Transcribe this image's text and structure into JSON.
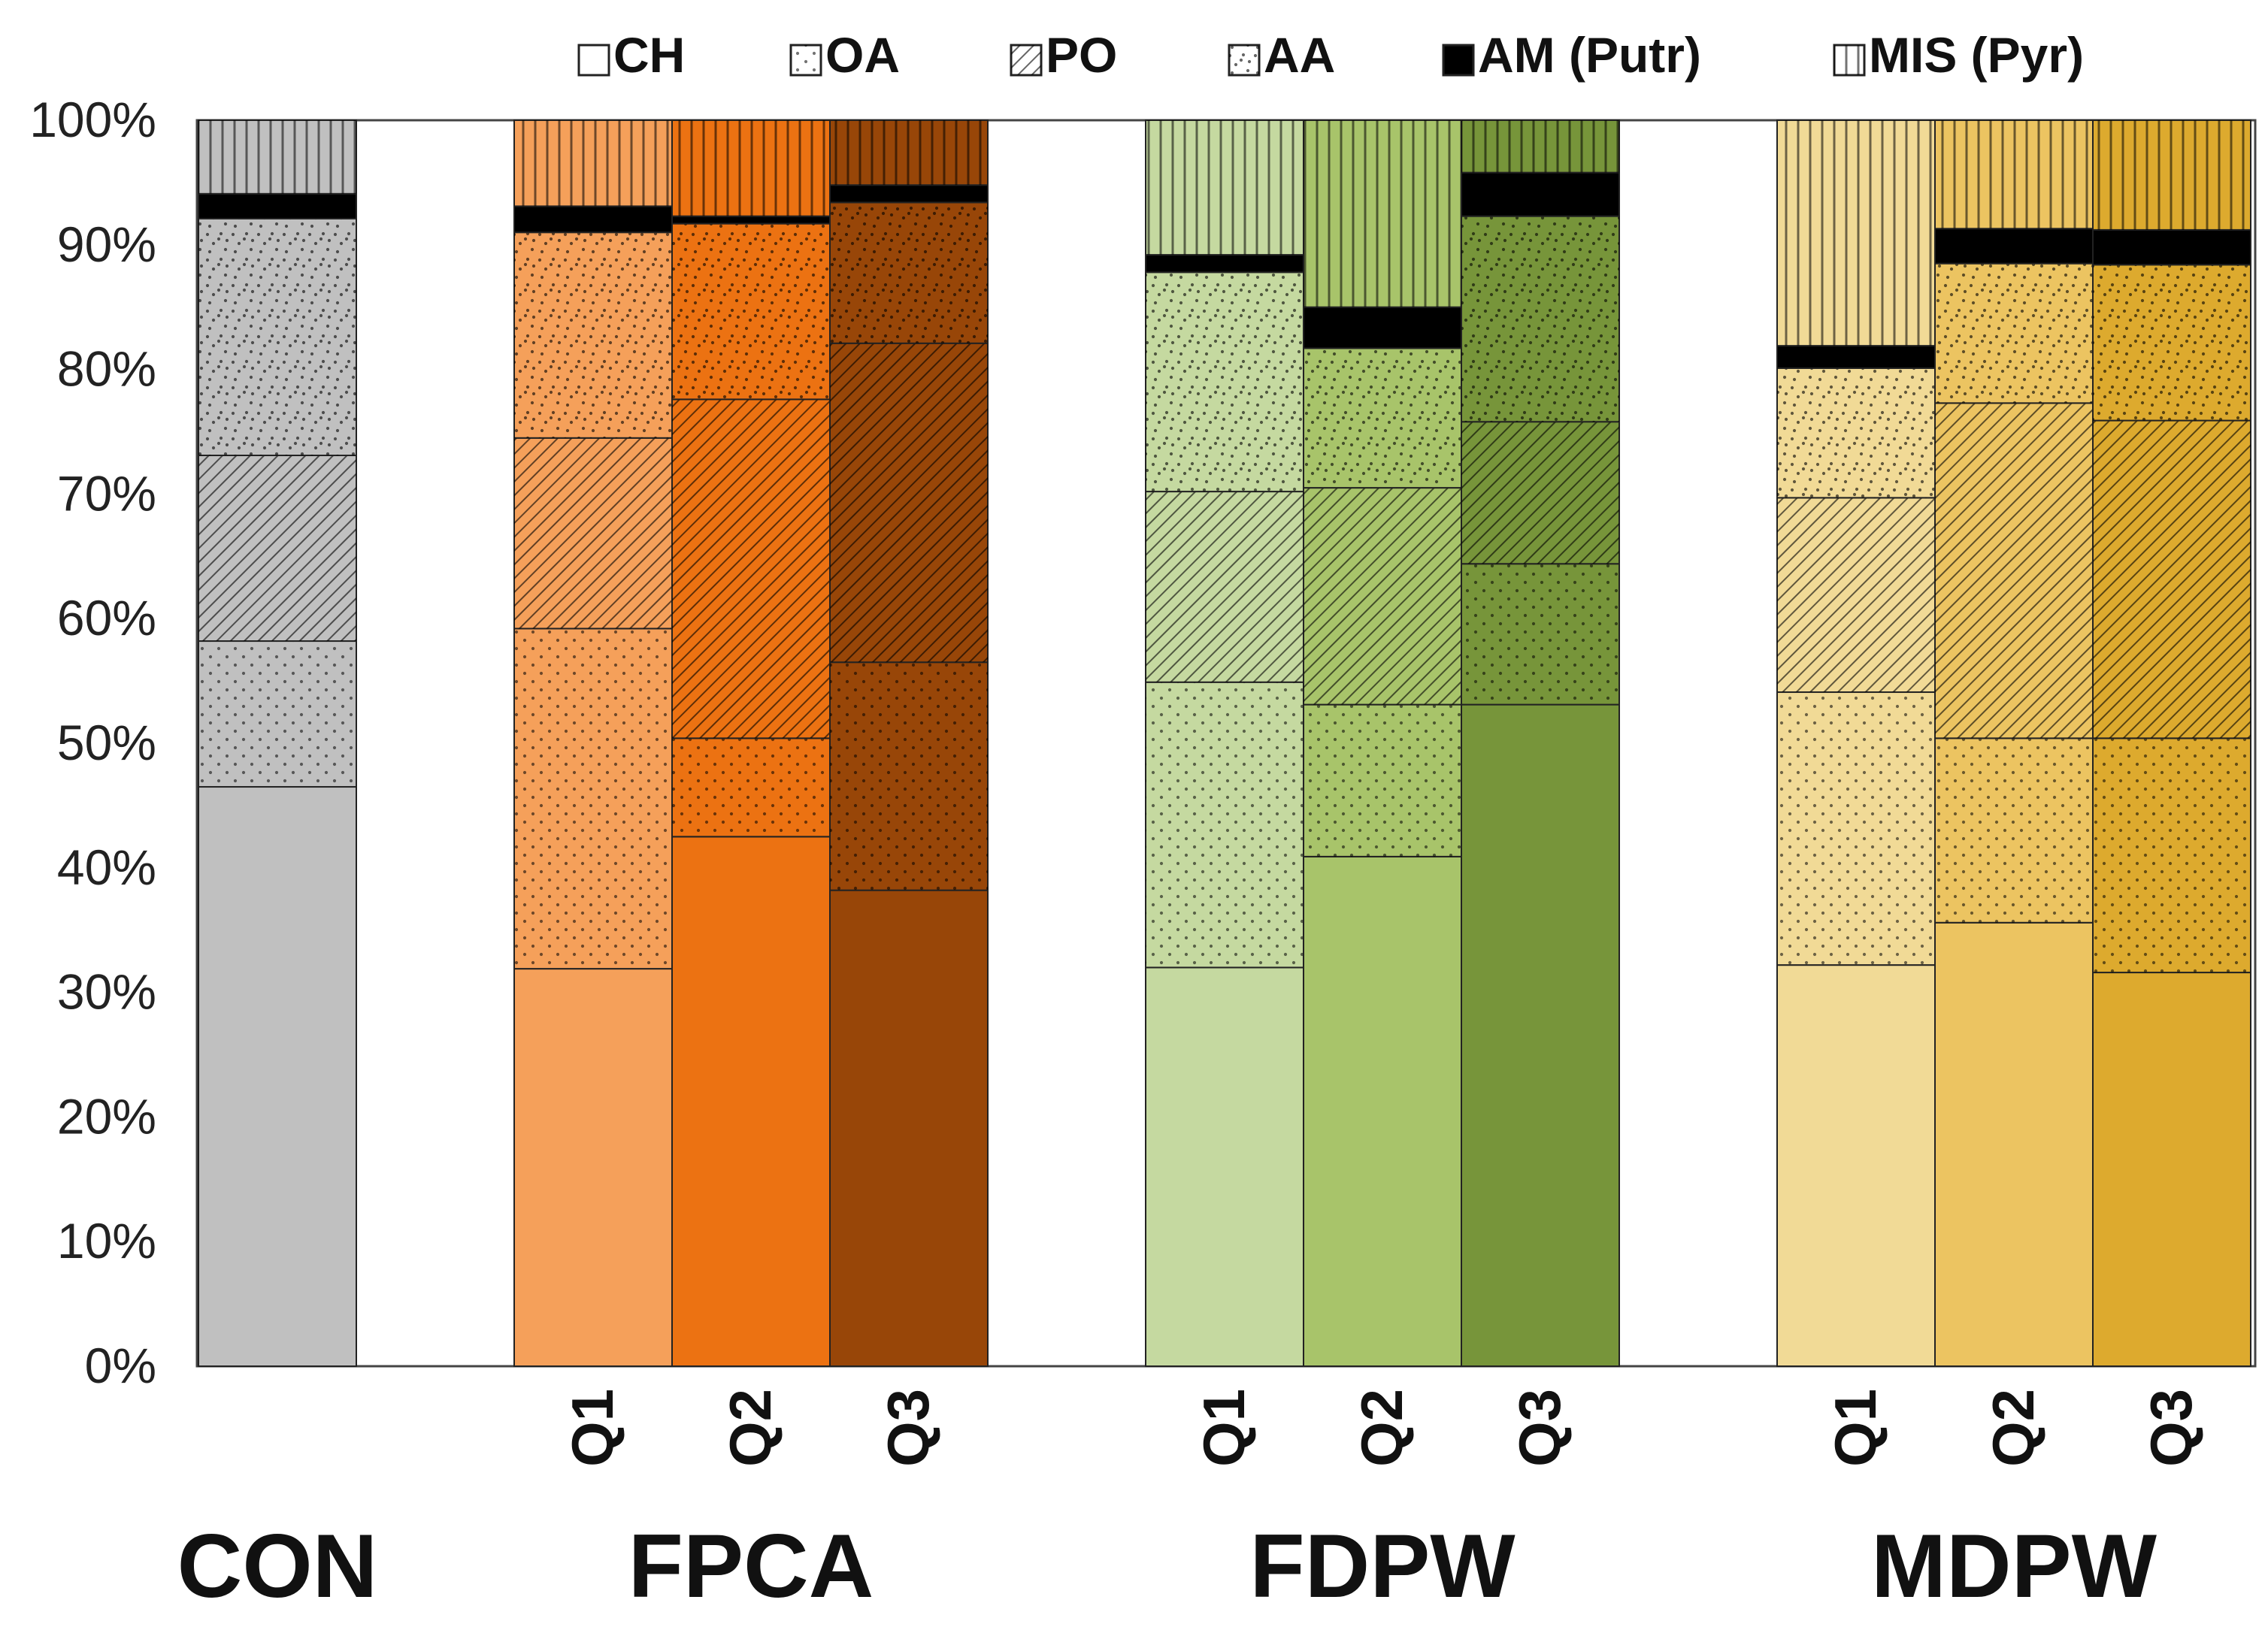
{
  "chart_data": {
    "type": "bar",
    "stacked": true,
    "percent_stacked": true,
    "title": "",
    "xlabel": "",
    "ylabel": "",
    "ylim": [
      0,
      100
    ],
    "y_ticks": [
      "0%",
      "10%",
      "20%",
      "30%",
      "40%",
      "50%",
      "60%",
      "70%",
      "80%",
      "90%",
      "100%"
    ],
    "grid": false,
    "legend_position": "top",
    "legend": [
      {
        "key": "CH",
        "label": "CH",
        "pattern": "solid"
      },
      {
        "key": "OA",
        "label": "OA",
        "pattern": "dots"
      },
      {
        "key": "PO",
        "label": "PO",
        "pattern": "diagonal"
      },
      {
        "key": "AA",
        "label": "AA",
        "pattern": "scatter"
      },
      {
        "key": "AM",
        "label": "AM (Putr)",
        "pattern": "black"
      },
      {
        "key": "MIS",
        "label": "MIS (Pyr)",
        "pattern": "vertical"
      }
    ],
    "groups": [
      {
        "label": "CON",
        "bars": [
          {
            "label": "",
            "color": "#c0c0c0",
            "values": {
              "CH": 46.5,
              "OA": 11.7,
              "PO": 14.9,
              "AA": 19.0,
              "AM": 2.0,
              "MIS": 5.9
            }
          }
        ]
      },
      {
        "label": "FPCA",
        "bars": [
          {
            "label": "Q1",
            "color": "#f5a05a",
            "values": {
              "CH": 31.9,
              "OA": 27.3,
              "PO": 15.3,
              "AA": 16.5,
              "AM": 2.1,
              "MIS": 6.9
            }
          },
          {
            "label": "Q2",
            "color": "#ec7212",
            "values": {
              "CH": 42.5,
              "OA": 7.9,
              "PO": 27.2,
              "AA": 14.1,
              "AM": 0.6,
              "MIS": 7.7
            }
          },
          {
            "label": "Q3",
            "color": "#984608",
            "values": {
              "CH": 38.2,
              "OA": 18.3,
              "PO": 25.6,
              "AA": 11.3,
              "AM": 1.4,
              "MIS": 5.2
            }
          }
        ]
      },
      {
        "label": "FDPW",
        "bars": [
          {
            "label": "Q1",
            "color": "#c5d9a0",
            "values": {
              "CH": 32.0,
              "OA": 22.9,
              "PO": 15.3,
              "AA": 17.6,
              "AM": 1.4,
              "MIS": 10.8
            }
          },
          {
            "label": "Q2",
            "color": "#a8c46a",
            "values": {
              "CH": 40.9,
              "OA": 12.2,
              "PO": 17.4,
              "AA": 11.2,
              "AM": 3.3,
              "MIS": 15.0
            }
          },
          {
            "label": "Q3",
            "color": "#77953a",
            "values": {
              "CH": 53.1,
              "OA": 11.3,
              "PO": 11.4,
              "AA": 16.5,
              "AM": 3.5,
              "MIS": 4.2
            }
          }
        ]
      },
      {
        "label": "MDPW",
        "bars": [
          {
            "label": "Q1",
            "color": "#f1da96",
            "values": {
              "CH": 32.2,
              "OA": 21.9,
              "PO": 15.6,
              "AA": 10.4,
              "AM": 1.8,
              "MIS": 18.1
            }
          },
          {
            "label": "Q2",
            "color": "#ecc461",
            "values": {
              "CH": 35.6,
              "OA": 14.8,
              "PO": 26.9,
              "AA": 11.2,
              "AM": 2.8,
              "MIS": 8.7
            }
          },
          {
            "label": "Q3",
            "color": "#ddaa2e",
            "values": {
              "CH": 31.6,
              "OA": 18.8,
              "PO": 25.5,
              "AA": 12.5,
              "AM": 2.8,
              "MIS": 8.8
            }
          }
        ]
      }
    ]
  }
}
